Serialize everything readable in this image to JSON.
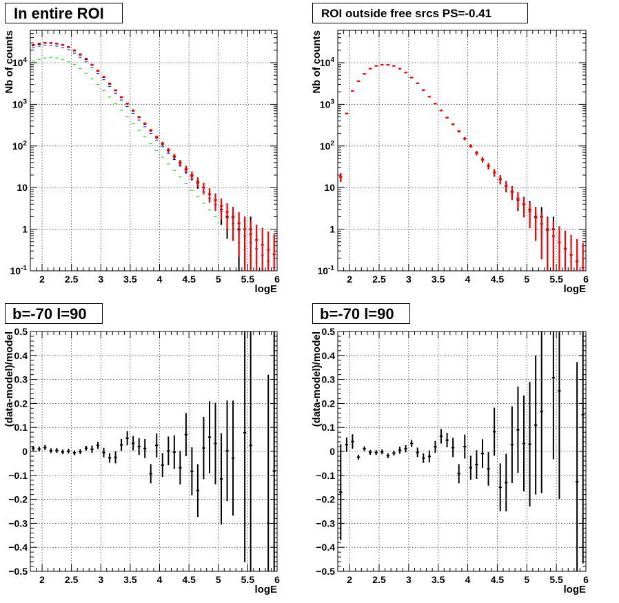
{
  "chart_data": [
    {
      "type": "scatter",
      "title": "In entire ROI",
      "xlabel": "logE",
      "ylabel": "Nb of counts",
      "xlim": [
        1.8,
        6.0
      ],
      "ylim": [
        0.1,
        60000
      ],
      "yscale": "log",
      "grid": true,
      "x_ticks": [
        "2",
        "2.5",
        "3",
        "3.5",
        "4",
        "4.5",
        "5",
        "5.5",
        "6"
      ],
      "y_ticks": [
        "10^-1",
        "1",
        "10",
        "10^2",
        "10^3",
        "10^4"
      ],
      "x": [
        1.85,
        1.95,
        2.05,
        2.15,
        2.25,
        2.35,
        2.45,
        2.55,
        2.65,
        2.75,
        2.85,
        2.95,
        3.05,
        3.15,
        3.25,
        3.35,
        3.45,
        3.55,
        3.65,
        3.75,
        3.85,
        3.95,
        4.05,
        4.15,
        4.25,
        4.35,
        4.45,
        4.55,
        4.65,
        4.75,
        4.85,
        4.95,
        5.05,
        5.15,
        5.25,
        5.35,
        5.45,
        5.55,
        5.65,
        5.75,
        5.85,
        5.95
      ],
      "series": [
        {
          "color": "#ff0000",
          "values": [
            27000,
            29000,
            30000,
            30000,
            29000,
            27000,
            24000,
            20000,
            16000,
            12500,
            9000,
            6500,
            4600,
            3200,
            2200,
            1500,
            1050,
            720,
            500,
            350,
            240,
            165,
            115,
            80,
            57,
            40,
            28,
            20,
            14,
            10,
            7,
            5,
            3.6,
            2.6,
            1.9,
            1.4,
            1.0,
            0.75,
            0.55,
            0.42,
            0.32,
            0.25
          ]
        },
        {
          "color": "#000000",
          "values": [
            26000,
            28000,
            29500,
            29500,
            28500,
            26500,
            23500,
            19500,
            15500,
            12000,
            8800,
            6300,
            4500,
            3100,
            2150,
            1470,
            1030,
            700,
            490,
            340,
            235,
            160,
            112,
            78,
            55,
            39,
            27,
            19,
            13,
            10,
            7,
            5,
            3,
            2,
            2,
            1,
            1,
            1,
            0,
            0,
            0,
            0
          ]
        },
        {
          "color": "#0000ff",
          "values": [
            23000,
            25000,
            26000,
            26000,
            25000,
            23000,
            20500,
            17000,
            13500,
            10500,
            7600,
            5500,
            3900,
            2700,
            1850,
            1270,
            890,
            610,
            420,
            290,
            200,
            138,
            96,
            67,
            47,
            33,
            23,
            16,
            11,
            7.8,
            5.5,
            3.9,
            2.7,
            1.9,
            1.35,
            0.95,
            0.68,
            0.48,
            0.34,
            0.24,
            0.17,
            0.12
          ]
        },
        {
          "color": "#00cc00",
          "values": [
            11000,
            12000,
            13000,
            13500,
            13000,
            12000,
            10500,
            9000,
            7200,
            5600,
            4100,
            3000,
            2150,
            1500,
            1050,
            720,
            500,
            345,
            238,
            165,
            113,
            78,
            54,
            37,
            26,
            18,
            12.5,
            8.6,
            6,
            4.2,
            2.9,
            2,
            1.4,
            0.98,
            0.68,
            0.47,
            0.33,
            0.23,
            0.16,
            0.11,
            0.08,
            0.06
          ]
        }
      ]
    },
    {
      "type": "scatter",
      "title": "ROI outside free srcs PS=-0.41",
      "xlabel": "logE",
      "ylabel": "Nb of counts",
      "xlim": [
        1.8,
        6.0
      ],
      "ylim": [
        0.1,
        60000
      ],
      "yscale": "log",
      "grid": true,
      "x_ticks": [
        "2",
        "2.5",
        "3",
        "3.5",
        "4",
        "4.5",
        "5",
        "5.5",
        "6"
      ],
      "y_ticks": [
        "10^-1",
        "1",
        "10",
        "10^2",
        "10^3",
        "10^4"
      ],
      "x": [
        1.85,
        1.95,
        2.05,
        2.15,
        2.25,
        2.35,
        2.45,
        2.55,
        2.65,
        2.75,
        2.85,
        2.95,
        3.05,
        3.15,
        3.25,
        3.35,
        3.45,
        3.55,
        3.65,
        3.75,
        3.85,
        3.95,
        4.05,
        4.15,
        4.25,
        4.35,
        4.45,
        4.55,
        4.65,
        4.75,
        4.85,
        4.95,
        5.05,
        5.15,
        5.25,
        5.35,
        5.45,
        5.55,
        5.65,
        5.75,
        5.85,
        5.95
      ],
      "series": [
        {
          "color": "#ff0000",
          "values": [
            18,
            600,
            2100,
            3600,
            5400,
            7200,
            8400,
            8900,
            8900,
            8400,
            7200,
            5800,
            4400,
            3200,
            2200,
            1520,
            1040,
            710,
            480,
            330,
            225,
            150,
            100,
            68,
            47,
            33,
            23,
            16,
            11,
            7.8,
            5.5,
            3.9,
            2.7,
            1.9,
            1.35,
            0.95,
            0.68,
            0.48,
            0.34,
            0.24,
            0.17,
            0.12
          ]
        },
        {
          "color": "#000000",
          "values": [
            18,
            600,
            2100,
            3600,
            5400,
            7200,
            8400,
            8900,
            8900,
            8400,
            7200,
            5800,
            4400,
            3200,
            2200,
            1520,
            1040,
            710,
            480,
            330,
            225,
            150,
            100,
            68,
            47,
            33,
            23,
            16,
            11,
            8,
            5,
            4,
            3,
            2,
            2,
            1,
            1,
            0,
            0,
            0,
            0,
            0
          ]
        }
      ]
    },
    {
      "type": "scatter",
      "title": "b=-70 l=90",
      "xlabel": "logE",
      "ylabel": "(data-model)/model",
      "xlim": [
        1.8,
        6.0
      ],
      "ylim": [
        -0.5,
        0.5
      ],
      "grid": true,
      "x_ticks": [
        "2",
        "2.5",
        "3",
        "3.5",
        "4",
        "4.5",
        "5",
        "5.5",
        "6"
      ],
      "y_ticks": [
        "-0.5",
        "-0.4",
        "-0.3",
        "-0.2",
        "-0.1",
        "0",
        "0.1",
        "0.2",
        "0.3",
        "0.4",
        "0.5"
      ],
      "x": [
        1.85,
        1.95,
        2.05,
        2.15,
        2.25,
        2.35,
        2.45,
        2.55,
        2.65,
        2.75,
        2.85,
        2.95,
        3.05,
        3.15,
        3.25,
        3.35,
        3.45,
        3.55,
        3.65,
        3.75,
        3.85,
        3.95,
        4.05,
        4.15,
        4.25,
        4.35,
        4.45,
        4.55,
        4.65,
        4.75,
        4.85,
        4.95,
        5.05,
        5.15,
        5.25,
        5.45,
        5.55,
        5.85,
        5.95
      ],
      "values": [
        0.013,
        0.01,
        0.016,
        0.003,
        0.004,
        -0.002,
        0.001,
        -0.006,
        -0.001,
        0.013,
        0.009,
        0.025,
        -0.005,
        -0.027,
        -0.025,
        0.027,
        0.055,
        0.034,
        0.02,
        0.012,
        -0.093,
        0.025,
        -0.057,
        0.002,
        -0.003,
        -0.068,
        0.07,
        -0.083,
        -0.163,
        0.014,
        0.059,
        0.033,
        -0.115,
        0.002,
        -0.028,
        0.078,
        0.025,
        -0.3,
        -0.082
      ],
      "errors": [
        0.01,
        0.01,
        0.01,
        0.01,
        0.01,
        0.01,
        0.01,
        0.01,
        0.01,
        0.01,
        0.015,
        0.015,
        0.02,
        0.02,
        0.025,
        0.025,
        0.03,
        0.03,
        0.035,
        0.04,
        0.04,
        0.05,
        0.05,
        0.06,
        0.07,
        0.07,
        0.09,
        0.1,
        0.11,
        0.13,
        0.15,
        0.17,
        0.19,
        0.21,
        0.24,
        0.54,
        0.55,
        0.62,
        0.72
      ]
    },
    {
      "type": "scatter",
      "title": "b=-70 l=90",
      "xlabel": "logE",
      "ylabel": "(data-model)/model",
      "xlim": [
        1.8,
        6.0
      ],
      "ylim": [
        -0.5,
        0.5
      ],
      "grid": true,
      "x_ticks": [
        "2",
        "2.5",
        "3",
        "3.5",
        "4",
        "4.5",
        "5",
        "5.5",
        "6"
      ],
      "y_ticks": [
        "-0.5",
        "-0.4",
        "-0.3",
        "-0.2",
        "-0.1",
        "0",
        "0.1",
        "0.2",
        "0.3",
        "0.4",
        "0.5"
      ],
      "x": [
        1.85,
        1.95,
        2.05,
        2.15,
        2.25,
        2.35,
        2.45,
        2.55,
        2.65,
        2.75,
        2.85,
        2.95,
        3.05,
        3.15,
        3.25,
        3.35,
        3.45,
        3.55,
        3.65,
        3.75,
        3.85,
        3.95,
        4.05,
        4.15,
        4.25,
        4.35,
        4.45,
        4.55,
        4.65,
        4.75,
        4.85,
        4.95,
        5.05,
        5.15,
        5.25,
        5.45,
        5.55,
        5.85,
        5.95
      ],
      "values": [
        -0.17,
        0.028,
        0.041,
        -0.024,
        0.011,
        -0.004,
        -0.005,
        -0.002,
        -0.018,
        -0.007,
        0.005,
        0.011,
        0.033,
        -0.004,
        -0.028,
        -0.021,
        0.019,
        0.063,
        0.047,
        0.016,
        -0.093,
        0.02,
        -0.068,
        -0.055,
        -0.009,
        -0.073,
        0.082,
        -0.15,
        -0.13,
        0.028,
        0.09,
        0.033,
        0.03,
        0.11,
        0.166,
        0.307,
        0.252,
        -0.127,
        0.153
      ],
      "errors": [
        0.2,
        0.03,
        0.03,
        0.01,
        0.01,
        0.01,
        0.01,
        0.01,
        0.01,
        0.01,
        0.015,
        0.015,
        0.015,
        0.02,
        0.02,
        0.025,
        0.025,
        0.03,
        0.03,
        0.04,
        0.04,
        0.05,
        0.05,
        0.06,
        0.06,
        0.07,
        0.1,
        0.1,
        0.12,
        0.16,
        0.18,
        0.2,
        0.26,
        0.29,
        0.34,
        0.34,
        0.45,
        0.5,
        0.62
      ]
    }
  ]
}
